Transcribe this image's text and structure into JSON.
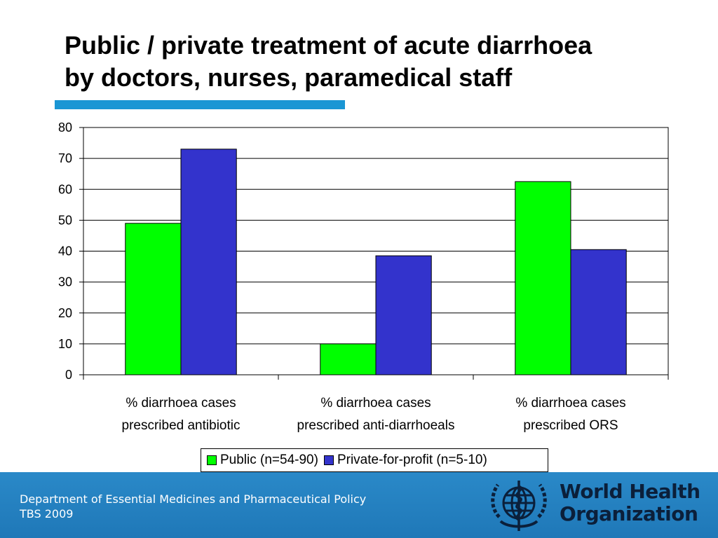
{
  "title": {
    "line1": "Public / private treatment of acute diarrhoea",
    "line2": "by doctors, nurses, paramedical staff"
  },
  "chart_data": {
    "type": "bar",
    "categories": [
      [
        "% diarrhoea cases",
        "prescribed antibiotic"
      ],
      [
        "% diarrhoea cases",
        "prescribed anti-diarrhoeals"
      ],
      [
        "% diarrhoea cases",
        "prescribed ORS"
      ]
    ],
    "series": [
      {
        "name": "Public (n=54-90)",
        "color": "#00ff00",
        "values": [
          49,
          10,
          62.5
        ]
      },
      {
        "name": "Private-for-profit (n=5-10)",
        "color": "#3333cc",
        "values": [
          73,
          38.5,
          40.5
        ]
      }
    ],
    "ylim": [
      0,
      80
    ],
    "yticks": [
      0,
      10,
      20,
      30,
      40,
      50,
      60,
      70,
      80
    ],
    "grid": true,
    "legend_position": "bottom"
  },
  "footer": {
    "line1": "Department of Essential Medicines and Pharmaceutical Policy",
    "line2": "TBS 2009"
  },
  "logo": {
    "emblem_icon": "who-emblem-icon",
    "line1": "World Health",
    "line2": "Organization"
  }
}
